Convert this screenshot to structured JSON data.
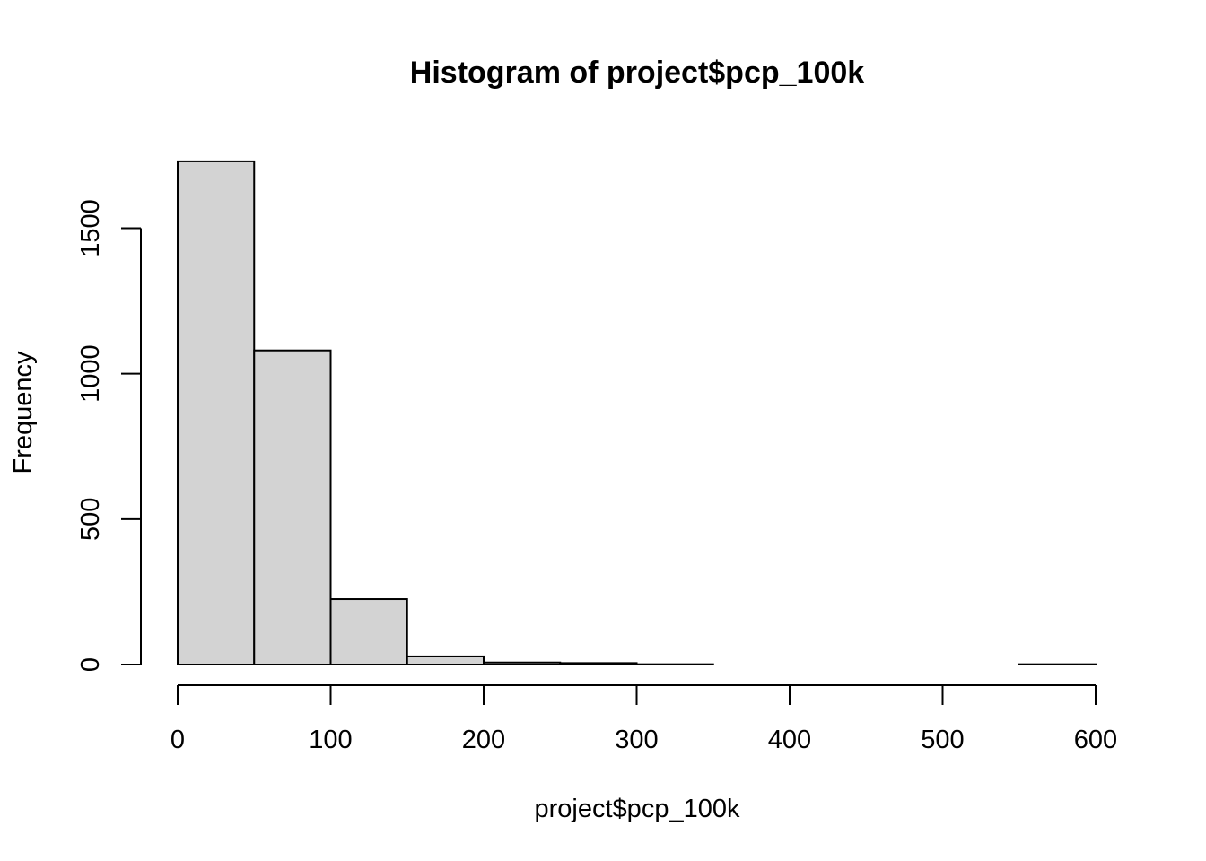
{
  "chart_data": {
    "type": "bar",
    "title": "Histogram of project$pcp_100k",
    "xlabel": "project$pcp_100k",
    "ylabel": "Frequency",
    "bins": [
      {
        "start": 0,
        "end": 50,
        "count": 1730
      },
      {
        "start": 50,
        "end": 100,
        "count": 1080
      },
      {
        "start": 100,
        "end": 150,
        "count": 225
      },
      {
        "start": 150,
        "end": 200,
        "count": 28
      },
      {
        "start": 200,
        "end": 250,
        "count": 7
      },
      {
        "start": 250,
        "end": 300,
        "count": 5
      },
      {
        "start": 300,
        "end": 350,
        "count": 1
      },
      {
        "start": 350,
        "end": 400,
        "count": 0
      },
      {
        "start": 400,
        "end": 450,
        "count": 0
      },
      {
        "start": 450,
        "end": 500,
        "count": 0
      },
      {
        "start": 500,
        "end": 550,
        "count": 0
      },
      {
        "start": 550,
        "end": 600,
        "count": 1
      }
    ],
    "xlim": [
      0,
      600
    ],
    "ylim": [
      0,
      1730
    ],
    "x_ticks": [
      "0",
      "100",
      "200",
      "300",
      "400",
      "500",
      "600"
    ],
    "y_ticks": [
      "0",
      "500",
      "1000",
      "1500"
    ],
    "grid": false,
    "bar_color": "#d3d3d3"
  }
}
